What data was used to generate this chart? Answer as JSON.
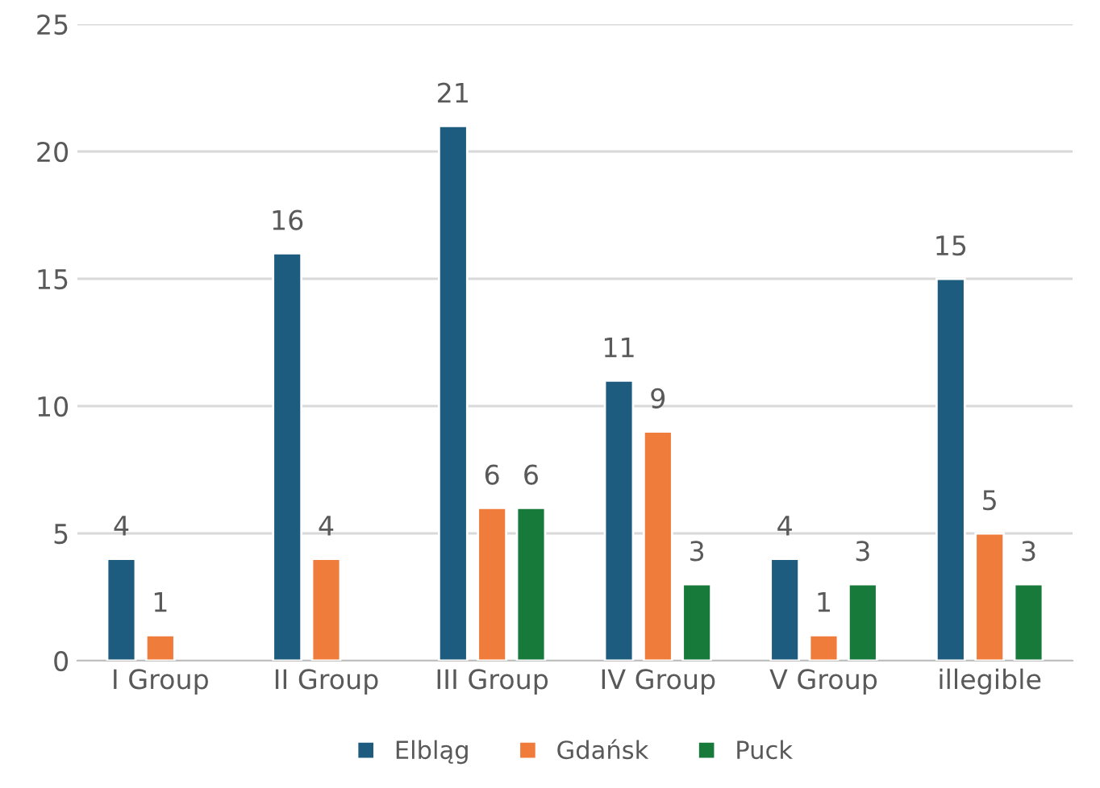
{
  "chart_data": {
    "type": "bar",
    "categories": [
      "I Group",
      "II Group",
      "III Group",
      "IV Group",
      "V Group",
      "illegible"
    ],
    "series": [
      {
        "name": "Elbląg",
        "color": "#1d5b7f",
        "values": [
          4,
          16,
          21,
          11,
          4,
          15
        ]
      },
      {
        "name": "Gdańsk",
        "color": "#f07c3b",
        "values": [
          1,
          4,
          6,
          9,
          1,
          5
        ]
      },
      {
        "name": "Puck",
        "color": "#17793a",
        "values": [
          null,
          null,
          6,
          3,
          3,
          3
        ]
      }
    ],
    "ylim": [
      0,
      25
    ],
    "yticks": [
      0,
      5,
      10,
      15,
      20,
      25
    ],
    "grid": "y",
    "legend": "bottom",
    "data_labels": true
  }
}
